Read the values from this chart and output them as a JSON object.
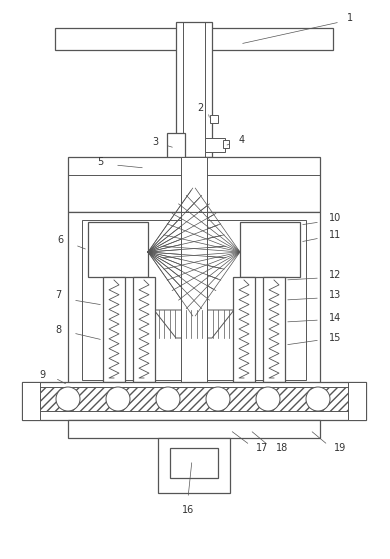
{
  "bg_color": "#ffffff",
  "line_color": "#555555",
  "fig_width": 3.9,
  "fig_height": 5.59,
  "dpi": 100
}
